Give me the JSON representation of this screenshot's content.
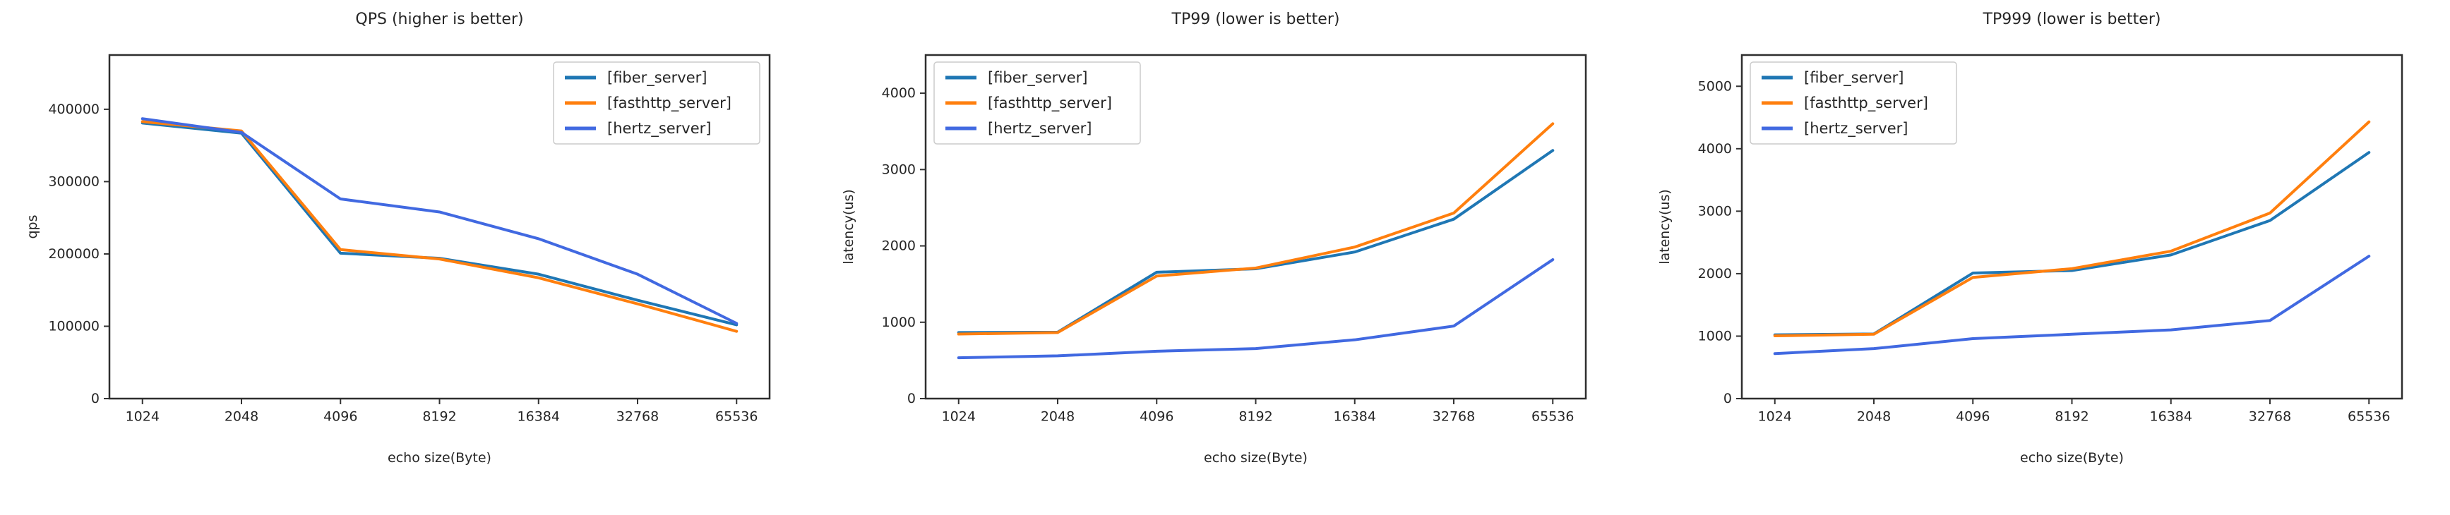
{
  "figure": {
    "background": "#ffffff",
    "text_color": "#262626",
    "axis_color": "#333333",
    "legend_border_color": "#cccccc",
    "legend_background": "#ffffff"
  },
  "chart_data": [
    {
      "type": "line",
      "title": "QPS (higher is better)",
      "xlabel": "echo size(Byte)",
      "ylabel": "qps",
      "categories": [
        "1024",
        "2048",
        "4096",
        "8192",
        "16384",
        "32768",
        "65536"
      ],
      "ylim": [
        0,
        475000
      ],
      "yticks": [
        0,
        100000,
        200000,
        300000,
        400000
      ],
      "grid": false,
      "legend_position": "upper-right",
      "series": [
        {
          "name": "[fiber_server]",
          "color": "#1f77b4",
          "values": [
            381000,
            367000,
            201000,
            194000,
            172000,
            136000,
            102000
          ]
        },
        {
          "name": "[fasthttp_server]",
          "color": "#ff7f0e",
          "values": [
            383000,
            370000,
            206000,
            193000,
            167000,
            131000,
            93000
          ]
        },
        {
          "name": "[hertz_server]",
          "color": "#4169e1",
          "values": [
            387000,
            368000,
            276000,
            258000,
            221000,
            172000,
            104000
          ]
        }
      ]
    },
    {
      "type": "line",
      "title": "TP99 (lower is better)",
      "xlabel": "echo size(Byte)",
      "ylabel": "latency(us)",
      "categories": [
        "1024",
        "2048",
        "4096",
        "8192",
        "16384",
        "32768",
        "65536"
      ],
      "ylim": [
        0,
        4500
      ],
      "yticks": [
        0,
        1000,
        2000,
        3000,
        4000
      ],
      "grid": false,
      "legend_position": "upper-left",
      "series": [
        {
          "name": "[fiber_server]",
          "color": "#1f77b4",
          "values": [
            865,
            870,
            1655,
            1700,
            1920,
            2350,
            3250
          ]
        },
        {
          "name": "[fasthttp_server]",
          "color": "#ff7f0e",
          "values": [
            845,
            865,
            1605,
            1710,
            1985,
            2430,
            3600
          ]
        },
        {
          "name": "[hertz_server]",
          "color": "#4169e1",
          "values": [
            535,
            560,
            620,
            655,
            770,
            950,
            1820
          ]
        }
      ]
    },
    {
      "type": "line",
      "title": "TP999 (lower is better)",
      "xlabel": "echo size(Byte)",
      "ylabel": "latency(us)",
      "categories": [
        "1024",
        "2048",
        "4096",
        "8192",
        "16384",
        "32768",
        "65536"
      ],
      "ylim": [
        0,
        5500
      ],
      "yticks": [
        0,
        1000,
        2000,
        3000,
        4000,
        5000
      ],
      "grid": false,
      "legend_position": "upper-left",
      "series": [
        {
          "name": "[fiber_server]",
          "color": "#1f77b4",
          "values": [
            1020,
            1035,
            2010,
            2050,
            2300,
            2850,
            3940
          ]
        },
        {
          "name": "[fasthttp_server]",
          "color": "#ff7f0e",
          "values": [
            1005,
            1030,
            1940,
            2080,
            2360,
            2970,
            4430
          ]
        },
        {
          "name": "[hertz_server]",
          "color": "#4169e1",
          "values": [
            720,
            800,
            960,
            1030,
            1100,
            1250,
            2280
          ]
        }
      ]
    }
  ]
}
